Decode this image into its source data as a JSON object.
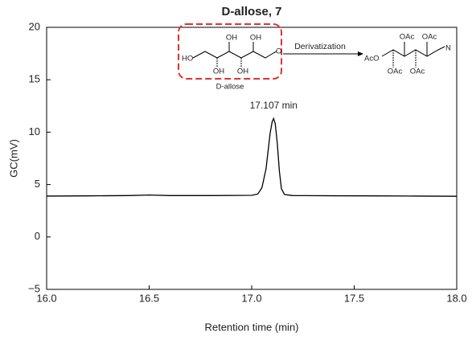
{
  "chart_data": {
    "type": "line",
    "title": "D-allose, 7",
    "xlabel": "Retention time (min)",
    "ylabel": "GC(mV)",
    "x": [
      16.0,
      16.2,
      16.4,
      16.5,
      16.6,
      16.8,
      17.0,
      17.03,
      17.05,
      17.07,
      17.08,
      17.09,
      17.1,
      17.107,
      17.115,
      17.125,
      17.135,
      17.145,
      17.16,
      17.2,
      17.4,
      17.6,
      17.8,
      18.0
    ],
    "values": [
      3.9,
      3.92,
      3.95,
      4.0,
      3.95,
      3.95,
      3.97,
      4.1,
      4.7,
      6.5,
      8.2,
      9.9,
      11.0,
      11.3,
      10.8,
      8.9,
      6.3,
      4.6,
      4.05,
      3.95,
      3.93,
      3.92,
      3.9,
      3.88
    ],
    "color": "#000000",
    "xlim": [
      16.0,
      18.0
    ],
    "xticks": [
      {
        "value": 16,
        "label": "16.0"
      },
      {
        "value": 16.5,
        "label": "16.5"
      },
      {
        "value": 17,
        "label": "17.0"
      },
      {
        "value": 17.5,
        "label": "17.5"
      },
      {
        "value": 18,
        "label": "18.0"
      }
    ],
    "ylim": [
      -5,
      20
    ],
    "yticks": [
      {
        "value": -5,
        "label": "−5"
      },
      0,
      5,
      10,
      15,
      20
    ],
    "annotations": [
      {
        "text": "17.107 min",
        "x": 17.107,
        "y": 12.5
      }
    ],
    "scheme": {
      "left": [
        "HO",
        "OH",
        "OH",
        "OH",
        "OH",
        "O"
      ],
      "left_name": "D-allose",
      "arrow_label": "Derivatization",
      "right": [
        "AcO",
        "OAc",
        "OAc",
        "OAc",
        "OAc",
        "N"
      ]
    }
  }
}
